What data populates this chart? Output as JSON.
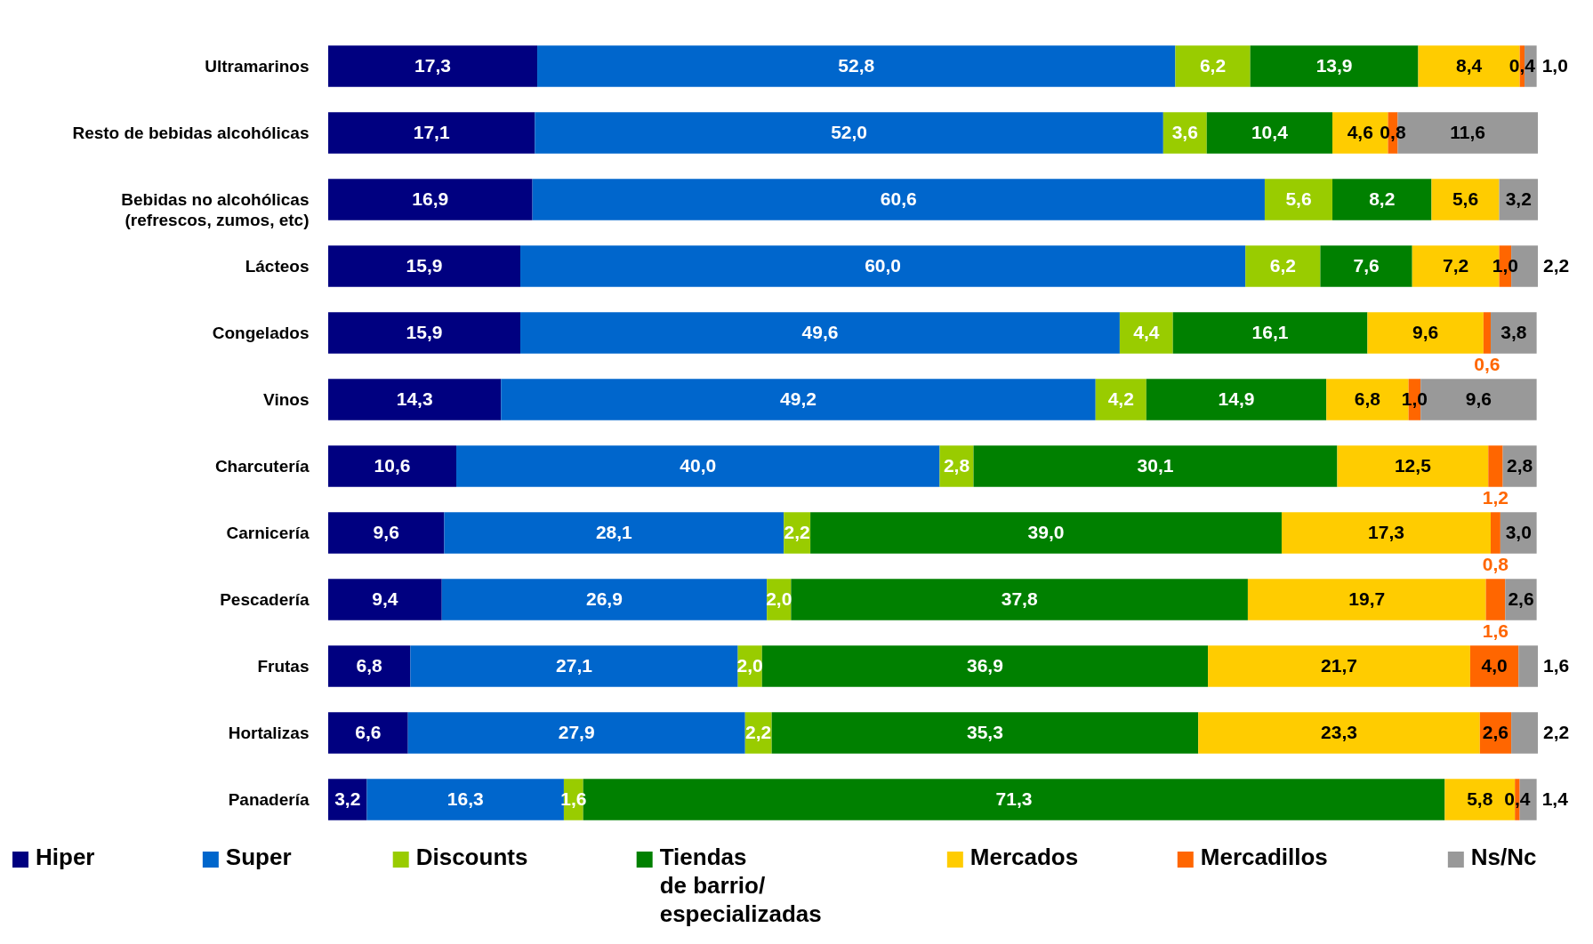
{
  "chart_data": {
    "type": "bar",
    "orientation": "horizontal",
    "stacked": true,
    "legend": "bottom",
    "tick_labels": "y",
    "categories": [
      "Ultramarinos",
      "Resto de bebidas alcohólicas",
      "Bebidas no alcohólicas\n(refrescos, zumos, etc)",
      "Lácteos",
      "Congelados",
      "Vinos",
      "Charcutería",
      "Carnicería",
      "Pescadería",
      "Frutas",
      "Hortalizas",
      "Panadería"
    ],
    "series": [
      {
        "name": "Hiper",
        "color": "#000080",
        "values": [
          17.3,
          17.1,
          16.9,
          15.9,
          15.9,
          14.3,
          10.6,
          9.6,
          9.4,
          6.8,
          6.6,
          3.2
        ],
        "value_labels": [
          "17,3",
          "17,1",
          "16,9",
          "15,9",
          "15,9",
          "14,3",
          "10,6",
          "9,6",
          "9,4",
          "6,8",
          "6,6",
          "3,2"
        ]
      },
      {
        "name": "Super",
        "color": "#0066cc",
        "values": [
          52.8,
          52.0,
          60.6,
          60.0,
          49.6,
          49.2,
          40.0,
          28.1,
          26.9,
          27.1,
          27.9,
          16.3
        ],
        "value_labels": [
          "52,8",
          "52,0",
          "60,6",
          "60,0",
          "49,6",
          "49,2",
          "40,0",
          "28,1",
          "26,9",
          "27,1",
          "27,9",
          "16,3"
        ]
      },
      {
        "name": "Discounts",
        "color": "#99cc00",
        "values": [
          6.2,
          3.6,
          5.6,
          6.2,
          4.4,
          4.2,
          2.8,
          2.2,
          2.0,
          2.0,
          2.2,
          1.6
        ],
        "value_labels": [
          "6,2",
          "3,6",
          "5,6",
          "6,2",
          "4,4",
          "4,2",
          "2,8",
          "2,2",
          "2,0",
          "2,0",
          "2,2",
          "1,6"
        ]
      },
      {
        "name": "Tiendas\nde barrio/\nespecializadas",
        "color": "#008000",
        "values": [
          13.9,
          10.4,
          8.2,
          7.6,
          16.1,
          14.9,
          30.1,
          39.0,
          37.8,
          36.9,
          35.3,
          71.3
        ],
        "value_labels": [
          "13,9",
          "10,4",
          "8,2",
          "7,6",
          "16,1",
          "14,9",
          "30,1",
          "39,0",
          "37,8",
          "36,9",
          "35,3",
          "71,3"
        ]
      },
      {
        "name": "Mercados",
        "color": "#ffcc00",
        "values": [
          8.4,
          4.6,
          5.6,
          7.2,
          9.6,
          6.8,
          12.5,
          17.3,
          19.7,
          21.7,
          23.3,
          5.8
        ],
        "value_labels": [
          "8,4",
          "4,6",
          "5,6",
          "7,2",
          "9,6",
          "6,8",
          "12,5",
          "17,3",
          "19,7",
          "21,7",
          "23,3",
          "5,8"
        ]
      },
      {
        "name": "Mercadillos",
        "color": "#ff6600",
        "values": [
          0.4,
          0.8,
          null,
          1.0,
          0.6,
          1.0,
          1.2,
          0.8,
          1.6,
          4.0,
          2.6,
          0.4
        ],
        "value_labels": [
          "0,4",
          "0,8",
          null,
          "1,0",
          "0,6",
          "1,0",
          "1,2",
          "0,8",
          "1,6",
          "4,0",
          "2,6",
          "0,4"
        ]
      },
      {
        "name": "Ns/Nc",
        "color": "#999999",
        "values": [
          1.0,
          11.6,
          3.2,
          2.2,
          3.8,
          9.6,
          2.8,
          3.0,
          2.6,
          1.6,
          2.2,
          1.4
        ],
        "value_labels": [
          "1,0",
          "11,6",
          "3,2",
          "2,2",
          "3,8",
          "9,6",
          "2,8",
          "3,0",
          "2,6",
          "1,6",
          "2,2",
          "1,4"
        ]
      }
    ]
  }
}
